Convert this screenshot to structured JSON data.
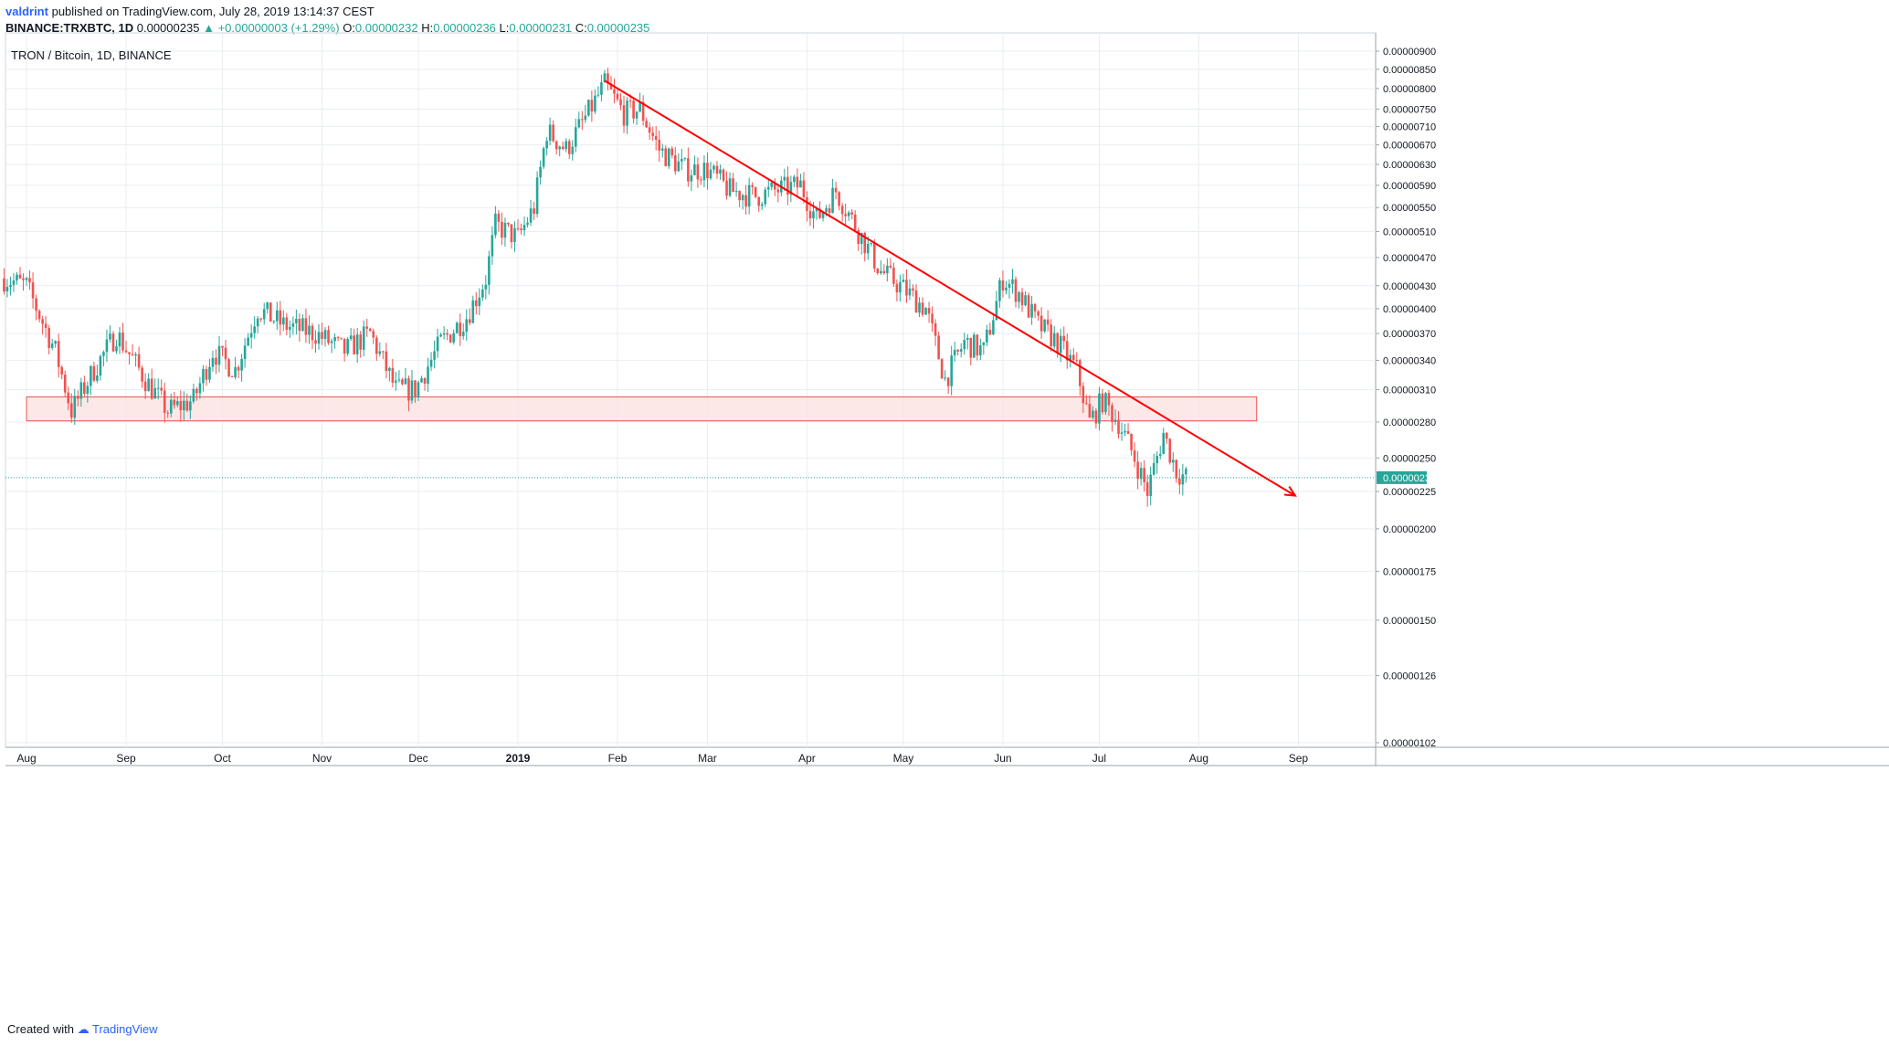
{
  "header": {
    "author": "valdrint",
    "published_text": "published on TradingView.com, July 28, 2019 13:14:37 CEST",
    "symbol": "BINANCE:TRXBTC, 1D",
    "price": "0.00000235",
    "change": "+0.00000003 (+1.29%)",
    "o_label": "O:",
    "o_value": "0.00000232",
    "h_label": "H:",
    "h_value": "0.00000236",
    "l_label": "L:",
    "l_value": "0.00000231",
    "c_label": "C:",
    "c_value": "0.00000235"
  },
  "legend_title": "TRON / Bitcoin, 1D, BINANCE",
  "footer": {
    "created_with": "Created with",
    "brand": "TradingView"
  },
  "colors": {
    "up": "#26a69a",
    "down": "#ef5350",
    "trendline": "#ff0000",
    "zone_fill": "#fde2e2",
    "zone_stroke": "#ef5350",
    "price_line": "#26a69a",
    "grid": "#e9eef3"
  },
  "chart_data": {
    "type": "candlestick",
    "scale": "log",
    "price_axis_labels": [
      "0.00000900",
      "0.00000850",
      "0.00000800",
      "0.00000750",
      "0.00000710",
      "0.00000670",
      "0.00000630",
      "0.00000590",
      "0.00000550",
      "0.00000510",
      "0.00000470",
      "0.00000430",
      "0.00000400",
      "0.00000370",
      "0.00000340",
      "0.00000310",
      "0.00000280",
      "0.00000250",
      "0.00000225",
      "0.00000200",
      "0.00000175",
      "0.00000150",
      "0.00000126",
      "0.00000102"
    ],
    "time_axis_labels": [
      "Aug",
      "Sep",
      "Oct",
      "Nov",
      "Dec",
      "2019",
      "Feb",
      "Mar",
      "Apr",
      "May",
      "Jun",
      "Jul",
      "Aug",
      "Sep"
    ],
    "current_price": 2.35e-06,
    "current_price_label": "0.00000235",
    "support_zone": {
      "low": 2.81e-06,
      "high": 3.03e-06,
      "from": "2018-08-01",
      "to": "2019-08-19"
    },
    "trendline": {
      "from": [
        "2019-01-28",
        8.2e-06
      ],
      "to": [
        "2019-08-31",
        2.22e-06
      ]
    },
    "ohlc_approx": [
      [
        "2018-07-25",
        4.4e-06
      ],
      [
        "2018-08-01",
        4.3e-06
      ],
      [
        "2018-08-10",
        3.5e-06
      ],
      [
        "2018-08-15",
        2.9e-06
      ],
      [
        "2018-08-22",
        3.3e-06
      ],
      [
        "2018-08-29",
        3.7e-06
      ],
      [
        "2018-09-07",
        3.2e-06
      ],
      [
        "2018-09-14",
        2.9e-06
      ],
      [
        "2018-09-22",
        3e-06
      ],
      [
        "2018-09-28",
        3.5e-06
      ],
      [
        "2018-10-05",
        3.3e-06
      ],
      [
        "2018-10-12",
        4e-06
      ],
      [
        "2018-10-20",
        3.8e-06
      ],
      [
        "2018-10-30",
        3.7e-06
      ],
      [
        "2018-11-08",
        3.5e-06
      ],
      [
        "2018-11-16",
        3.7e-06
      ],
      [
        "2018-11-24",
        3.1e-06
      ],
      [
        "2018-11-30",
        3.1e-06
      ],
      [
        "2018-12-08",
        3.6e-06
      ],
      [
        "2018-12-16",
        3.9e-06
      ],
      [
        "2018-12-22",
        4.4e-06
      ],
      [
        "2018-12-25",
        5.2e-06
      ],
      [
        "2019-01-01",
        5e-06
      ],
      [
        "2019-01-06",
        5.5e-06
      ],
      [
        "2019-01-10",
        7e-06
      ],
      [
        "2019-01-16",
        6.6e-06
      ],
      [
        "2019-01-22",
        7.3e-06
      ],
      [
        "2019-01-28",
        8.1e-06
      ],
      [
        "2019-02-03",
        7.4e-06
      ],
      [
        "2019-02-08",
        7.5e-06
      ],
      [
        "2019-02-14",
        6.6e-06
      ],
      [
        "2019-02-22",
        6.2e-06
      ],
      [
        "2019-03-01",
        6.2e-06
      ],
      [
        "2019-03-08",
        5.8e-06
      ],
      [
        "2019-03-16",
        5.7e-06
      ],
      [
        "2019-03-22",
        5.8e-06
      ],
      [
        "2019-03-30",
        5.9e-06
      ],
      [
        "2019-04-04",
        5.3e-06
      ],
      [
        "2019-04-10",
        5.8e-06
      ],
      [
        "2019-04-16",
        5.2e-06
      ],
      [
        "2019-04-24",
        4.5e-06
      ],
      [
        "2019-04-30",
        4.3e-06
      ],
      [
        "2019-05-08",
        4e-06
      ],
      [
        "2019-05-14",
        3.2e-06
      ],
      [
        "2019-05-20",
        3.6e-06
      ],
      [
        "2019-05-26",
        3.5e-06
      ],
      [
        "2019-06-01",
        4.4e-06
      ],
      [
        "2019-06-06",
        4.2e-06
      ],
      [
        "2019-06-12",
        3.8e-06
      ],
      [
        "2019-06-18",
        3.6e-06
      ],
      [
        "2019-06-24",
        3.3e-06
      ],
      [
        "2019-06-28",
        2.8e-06
      ],
      [
        "2019-07-02",
        3e-06
      ],
      [
        "2019-07-07",
        2.8e-06
      ],
      [
        "2019-07-12",
        2.5e-06
      ],
      [
        "2019-07-16",
        2.25e-06
      ],
      [
        "2019-07-21",
        2.7e-06
      ],
      [
        "2019-07-25",
        2.4e-06
      ],
      [
        "2019-07-28",
        2.35e-06
      ]
    ]
  }
}
